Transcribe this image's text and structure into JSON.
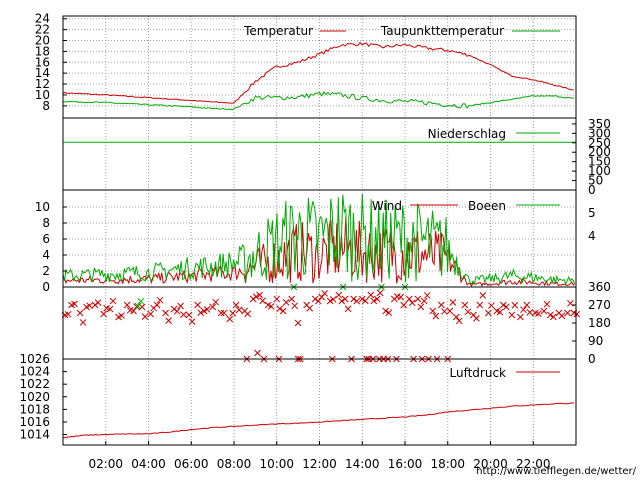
{
  "chart_data": [
    {
      "type": "line",
      "panel": "temperature",
      "ylim": [
        6.5,
        24.5
      ],
      "y_ticks": [
        "24",
        "22",
        "20",
        "18",
        "16",
        "14",
        "12",
        "10",
        "8"
      ],
      "legend_placement": "top-right",
      "grid": true,
      "series": [
        {
          "name": "Temperatur",
          "color": "#cc0000",
          "x": [
            0,
            2,
            4,
            6,
            7,
            8,
            9,
            10,
            11,
            12,
            13,
            14,
            15,
            16,
            17,
            18,
            19,
            20,
            21,
            22,
            23,
            24
          ],
          "values": [
            10.4,
            10.0,
            9.5,
            9.0,
            8.7,
            8.5,
            12.5,
            15.2,
            16.0,
            17.5,
            19.2,
            19.4,
            18.8,
            19.2,
            18.6,
            18.2,
            17.3,
            15.5,
            13.5,
            12.8,
            11.8,
            10.8
          ]
        },
        {
          "name": "Taupunkttemperatur",
          "color": "#00aa00",
          "x": [
            0,
            2,
            4,
            6,
            7,
            8,
            9,
            10,
            11,
            12,
            13,
            14,
            15,
            16,
            17,
            18,
            19,
            20,
            21,
            22,
            23,
            24
          ],
          "values": [
            8.8,
            8.6,
            8.2,
            7.8,
            7.5,
            7.4,
            9.5,
            9.5,
            9.6,
            10.2,
            10.0,
            9.4,
            9.0,
            8.8,
            8.6,
            8.2,
            8.0,
            8.6,
            9.2,
            9.8,
            9.8,
            9.3
          ]
        }
      ]
    },
    {
      "type": "line",
      "panel": "precipitation",
      "ylim": [
        0,
        360
      ],
      "y_ticks": [
        "350",
        "300",
        "250",
        "200",
        "150",
        "100",
        "50",
        "0"
      ],
      "legend_placement": "top-right",
      "series": [
        {
          "name": "Niederschlag",
          "color": "#00aa00",
          "x": [
            0,
            24
          ],
          "values": [
            253,
            253
          ]
        }
      ]
    },
    {
      "type": "line",
      "panel": "wind",
      "ylim": [
        0,
        11
      ],
      "y_ticks_left": [
        "10",
        "8",
        "6",
        "4",
        "2",
        "0"
      ],
      "y_ticks_right": [
        "5",
        "4"
      ],
      "legend_placement": "top-right",
      "grid": true,
      "series": [
        {
          "name": "Wind",
          "color": "#cc0000",
          "x": [
            0,
            2,
            4,
            6,
            7,
            8,
            9,
            10,
            11,
            12,
            13,
            14,
            15,
            16,
            17,
            18,
            19,
            20,
            21,
            22,
            23,
            24
          ],
          "values": [
            0.8,
            0.9,
            1.0,
            1.4,
            1.6,
            1.8,
            2.5,
            3.5,
            4.4,
            4.0,
            4.8,
            4.3,
            4.2,
            4.5,
            4.0,
            3.5,
            0.3,
            0.4,
            0.7,
            0.6,
            0.4,
            0.4
          ]
        },
        {
          "name": "Boeen",
          "color": "#00aa00",
          "x": [
            0,
            2,
            4,
            6,
            7,
            8,
            9,
            10,
            11,
            12,
            13,
            14,
            15,
            16,
            17,
            18,
            19,
            20,
            21,
            22,
            23,
            24
          ],
          "values": [
            1.4,
            1.6,
            1.8,
            2.4,
            2.6,
            3.0,
            4.0,
            5.5,
            6.5,
            6.0,
            7.0,
            6.2,
            5.8,
            6.0,
            5.5,
            4.8,
            0.8,
            1.0,
            1.4,
            1.2,
            0.9,
            0.8
          ]
        }
      ]
    },
    {
      "type": "scatter",
      "panel": "wind-direction",
      "ylim": [
        0,
        360
      ],
      "y_ticks": [
        "360",
        "270",
        "180",
        "90",
        "0"
      ],
      "series": [
        {
          "color": "#cc0000",
          "x": [
            0.1,
            0.4,
            0.8,
            1.1,
            1.5,
            1.9,
            2.2,
            2.6,
            3.0,
            3.3,
            3.7,
            4.1,
            4.4,
            4.8,
            5.2,
            5.5,
            5.9,
            6.3,
            6.6,
            7.0,
            7.4,
            7.8,
            8.1,
            8.5,
            8.9,
            9.2,
            9.6,
            10.0,
            10.3,
            10.7,
            11.0,
            11.4,
            11.8,
            12.1,
            12.5,
            12.9,
            13.2,
            13.6,
            14.0,
            14.4,
            14.7,
            15.1,
            15.5,
            15.8,
            16.2,
            16.6,
            16.9,
            17.3,
            17.7,
            18.1,
            18.4,
            18.8,
            19.2,
            19.5,
            19.9,
            20.3,
            20.6,
            21.0,
            21.4,
            21.7,
            22.1,
            22.5,
            22.8,
            23.2,
            23.6,
            23.9
          ],
          "values": [
            220,
            270,
            230,
            260,
            270,
            225,
            250,
            210,
            270,
            240,
            260,
            225,
            270,
            230,
            250,
            265,
            220,
            270,
            240,
            260,
            230,
            200,
            270,
            240,
            300,
            320,
            270,
            300,
            240,
            300,
            180,
            270,
            300,
            310,
            290,
            320,
            300,
            300,
            300,
            320,
            300,
            240,
            300,
            310,
            300,
            300,
            290,
            240,
            270,
            240,
            210,
            270,
            220,
            270,
            230,
            240,
            270,
            220,
            210,
            270,
            230,
            240,
            220,
            230,
            230,
            230
          ]
        },
        {
          "color": "#cc0000",
          "x": [
            8.6,
            9.1,
            9.4,
            10.1,
            11.0,
            11.1,
            12.6,
            13.5,
            14.2,
            14.3,
            14.5,
            14.8,
            15.0,
            15.2,
            15.6,
            16.4,
            16.8,
            17.1,
            17.5,
            18.0
          ],
          "values": [
            0,
            30,
            0,
            0,
            0,
            0,
            0,
            0,
            0,
            0,
            0,
            0,
            0,
            0,
            0,
            0,
            0,
            0,
            0,
            0
          ]
        },
        {
          "color": "#00aa00",
          "x": [
            3.5,
            10.8,
            13.1,
            14.9,
            16.0
          ],
          "values": [
            265,
            360,
            360,
            360,
            360
          ]
        }
      ]
    },
    {
      "type": "line",
      "panel": "pressure",
      "ylim": [
        1012.5,
        1026
      ],
      "y_ticks": [
        "1026",
        "1024",
        "1022",
        "1020",
        "1018",
        "1016",
        "1014"
      ],
      "legend_placement": "top-right",
      "series": [
        {
          "name": "Luftdruck",
          "color": "#cc0000",
          "x": [
            0,
            1,
            2,
            3,
            4,
            5,
            6,
            7,
            8,
            9,
            10,
            11,
            12,
            13,
            14,
            15,
            16,
            17,
            18,
            19,
            20,
            21,
            22,
            23,
            24
          ],
          "values": [
            1013.5,
            1013.9,
            1014.0,
            1014.1,
            1014.1,
            1014.4,
            1014.8,
            1015.1,
            1015.3,
            1015.5,
            1015.7,
            1015.8,
            1016.0,
            1016.2,
            1016.4,
            1016.6,
            1016.8,
            1017.1,
            1017.6,
            1017.9,
            1018.2,
            1018.5,
            1018.7,
            1018.9,
            1019.0
          ]
        }
      ]
    }
  ],
  "x_axis": {
    "ticks": [
      "02:00",
      "04:00",
      "06:00",
      "08:00",
      "10:00",
      "12:00",
      "14:00",
      "16:00",
      "18:00",
      "20:00",
      "22:00"
    ],
    "tick_hours": [
      2,
      4,
      6,
      8,
      10,
      12,
      14,
      16,
      18,
      20,
      22
    ],
    "range_hours": [
      0,
      24
    ]
  },
  "source_url": "http://www.tiefflegen.de/wetter/",
  "colors": {
    "red": "#cc0000",
    "green": "#00aa00"
  }
}
